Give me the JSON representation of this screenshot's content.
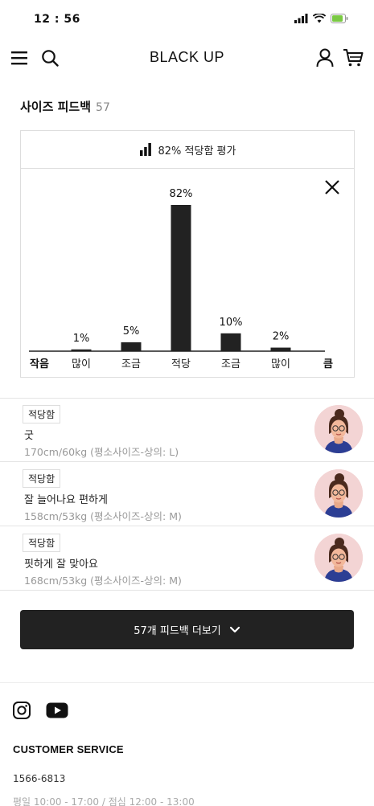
{
  "status_bar": {
    "time": "12 : 56"
  },
  "header": {
    "brand": "BLACK UP"
  },
  "size_feedback": {
    "title": "사이즈 피드백",
    "count": "57",
    "summary": "82% 적당함 평가"
  },
  "chart_data": {
    "type": "bar",
    "categories": [
      "많이",
      "조금",
      "적당",
      "조금",
      "많이"
    ],
    "values": [
      1,
      5,
      82,
      10,
      2
    ],
    "value_labels": [
      "1%",
      "5%",
      "82%",
      "10%",
      "2%"
    ],
    "left_label": "작음",
    "right_label": "큼",
    "ylim": [
      0,
      82
    ]
  },
  "reviews": [
    {
      "badge": "적당함",
      "comment": "굿",
      "info": "170cm/60kg (평소사이즈-상의: L)"
    },
    {
      "badge": "적당함",
      "comment": "잘 늘어나요 편하게",
      "info": "158cm/53kg (평소사이즈-상의: M)"
    },
    {
      "badge": "적당함",
      "comment": "핏하게 잘 맞아요",
      "info": "168cm/53kg (평소사이즈-상의: M)"
    }
  ],
  "more_button": {
    "label": "57개 피드백 더보기"
  },
  "footer": {
    "cs_title": "CUSTOMER SERVICE",
    "phone": "1566-6813",
    "hours": "평일 10:00 - 17:00 / 점심 12:00 - 13:00"
  },
  "colors": {
    "bar": "#222222",
    "button_bg": "#222222",
    "avatar_bg": "#f3d4d4"
  }
}
